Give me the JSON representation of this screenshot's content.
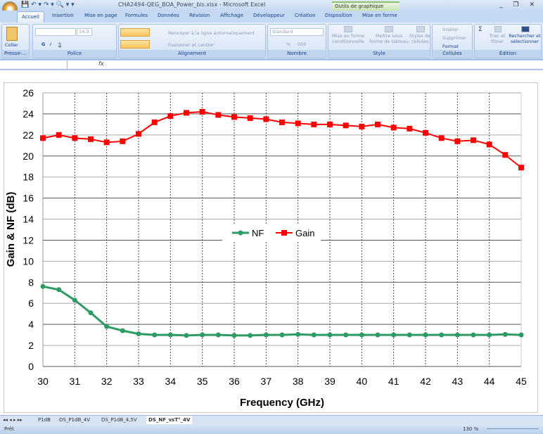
{
  "window": {
    "title": "CHA2494-QEG_BOA_Power_bis.xlsx - Microsoft Excel",
    "context_tools": "Outils de graphique",
    "controls": "_ ❐ ✕"
  },
  "qat": {
    "icons": [
      "save-icon",
      "undo-icon",
      "redo-icon",
      "print-preview-icon"
    ],
    "text": "💾 ↶ ▾ ↷ ▾ 🔍 ▾ ▾"
  },
  "tabs": [
    "Accueil",
    "Insertion",
    "Mise en page",
    "Formules",
    "Données",
    "Révision",
    "Affichage",
    "Développeur",
    "Création",
    "Disposition",
    "Mise en forme"
  ],
  "active_tab": "Accueil",
  "ribbon": {
    "clipboard": {
      "label": "Presse-...",
      "paste": "Coller"
    },
    "font": {
      "label": "Police",
      "size": "14,3",
      "bold": "G",
      "italic": "I",
      "underline": "S"
    },
    "alignment": {
      "label": "Alignement",
      "wrap": "Renvoyer à la ligne automatiquement",
      "merge": "Fusionner et centrer"
    },
    "number": {
      "label": "Nombre",
      "format": "Standard",
      "percent": "%",
      "thousands": "000"
    },
    "style": {
      "label": "Style",
      "conditional": "Mise en forme conditionnelle",
      "table": "Mettre sous forme de tableau",
      "cell_styles": "Styles de cellules"
    },
    "cells": {
      "label": "Cellules",
      "insert": "Insérer",
      "delete": "Supprimer",
      "format": "Format"
    },
    "editing": {
      "label": "Édition",
      "sort": "Trier et filtrer",
      "find": "Rechercher et sélectionner",
      "sum": "Σ"
    }
  },
  "formula_bar": {
    "name_box": "",
    "fx": "fx",
    "value": ""
  },
  "sheet_tabs": [
    "P1dB",
    "DS_P1dB_4V",
    "DS_P1dB_4,5V",
    "DS_NF_vsT°_4V"
  ],
  "active_sheet": "DS_NF_vsT°_4V",
  "status": {
    "ready": "Prêt",
    "zoom": "130 %"
  },
  "chart_data": {
    "type": "line",
    "xlabel": "Frequency (GHz)",
    "ylabel": "Gain & NF (dB)",
    "xlim": [
      30,
      45
    ],
    "ylim": [
      0,
      26
    ],
    "xticks": [
      "30",
      "31",
      "32",
      "33",
      "34",
      "35",
      "36",
      "37",
      "38",
      "39",
      "40",
      "41",
      "42",
      "43",
      "44",
      "45"
    ],
    "yticks": [
      "0",
      "2",
      "4",
      "6",
      "8",
      "10",
      "12",
      "14",
      "16",
      "18",
      "20",
      "22",
      "24",
      "26"
    ],
    "grid": "on",
    "legend": "center",
    "x": [
      30,
      30.5,
      31,
      31.5,
      32,
      32.5,
      33,
      33.5,
      34,
      34.5,
      35,
      35.5,
      36,
      36.5,
      37,
      37.5,
      38,
      38.5,
      39,
      39.5,
      40,
      40.5,
      41,
      41.5,
      42,
      42.5,
      43,
      43.5,
      44,
      44.5,
      45
    ],
    "series": [
      {
        "name": "NF",
        "color": "#2e9a64",
        "marker": "circle",
        "values": [
          7.6,
          7.3,
          6.3,
          5.1,
          3.8,
          3.4,
          3.1,
          3.0,
          3.0,
          2.95,
          3.0,
          3.0,
          2.95,
          2.95,
          3.0,
          3.0,
          3.05,
          3.0,
          3.0,
          3.0,
          3.0,
          3.0,
          3.0,
          3.0,
          3.0,
          3.0,
          3.0,
          3.0,
          3.0,
          3.05,
          3.0
        ]
      },
      {
        "name": "Gain",
        "color": "#ff0000",
        "marker": "square",
        "values": [
          21.7,
          22.0,
          21.7,
          21.6,
          21.3,
          21.4,
          22.1,
          23.2,
          23.8,
          24.1,
          24.2,
          23.9,
          23.7,
          23.6,
          23.5,
          23.2,
          23.1,
          23.0,
          23.0,
          22.9,
          22.8,
          23.0,
          22.7,
          22.6,
          22.2,
          21.7,
          21.4,
          21.5,
          21.1,
          20.1,
          18.9
        ]
      }
    ]
  }
}
